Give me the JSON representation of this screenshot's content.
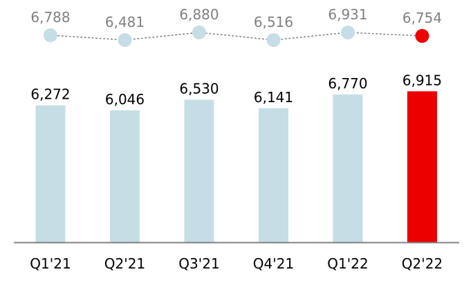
{
  "chart_data": {
    "type": "bar",
    "categories": [
      "Q1'21",
      "Q2'21",
      "Q3'21",
      "Q4'21",
      "Q1'22",
      "Q2'22"
    ],
    "series": [
      {
        "values": [
          6272,
          6046,
          6530,
          6141,
          6770,
          6915
        ],
        "labels": [
          "6,272",
          "6,046",
          "6,530",
          "6,141",
          "6,770",
          "6,915"
        ]
      },
      {
        "type": "line",
        "line_style": "dotted",
        "values": [
          6788,
          6481,
          6880,
          6516,
          6931,
          6754
        ],
        "labels": [
          "6,788",
          "6,481",
          "6,880",
          "6,516",
          "6,931",
          "6,754"
        ]
      }
    ],
    "highlight_index": 5,
    "grid": false,
    "colors": {
      "bar": "#c5dee6",
      "highlight": "#ec0000",
      "dot": "#c5dee6",
      "dot_line": "#808080",
      "axis": "#808080",
      "bar_label": "#000000",
      "dot_label": "#808080"
    }
  }
}
